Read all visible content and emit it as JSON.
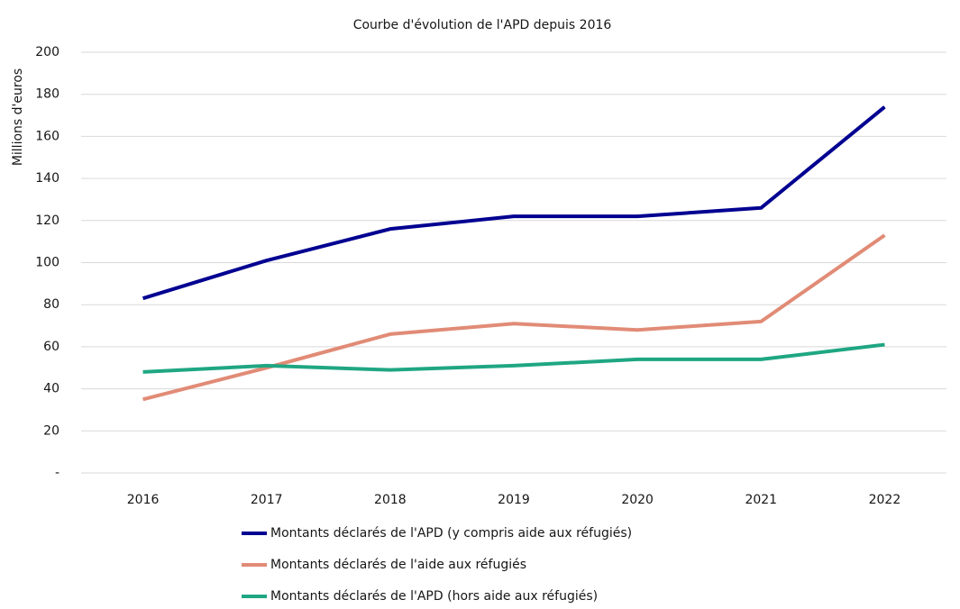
{
  "chart_data": {
    "type": "line",
    "title": "Courbe d'évolution de l'APD depuis 2016",
    "y_label": "Millions d'euros",
    "categories": [
      "2016",
      "2017",
      "2018",
      "2019",
      "2020",
      "2021",
      "2022"
    ],
    "series": [
      {
        "name": "Montants déclarés de l'APD (y compris aide aux réfugiés)",
        "color": "#000091",
        "values": [
          83,
          101,
          116,
          122,
          122,
          126,
          174
        ]
      },
      {
        "name": "Montants déclarés de l'aide aux réfugiés",
        "color": "#e18b76",
        "values": [
          35,
          50,
          66,
          71,
          68,
          72,
          113
        ]
      },
      {
        "name": "Montants déclarés de l'APD (hors aide aux réfugiés)",
        "color": "#1fa683",
        "values": [
          48,
          51,
          49,
          51,
          54,
          54,
          61
        ]
      }
    ],
    "ylim": [
      0,
      200
    ],
    "yticks": [
      {
        "value": 0,
        "label": "-"
      },
      20,
      40,
      60,
      80,
      100,
      120,
      140,
      160,
      180,
      200
    ],
    "grid": true,
    "legend": "bottom"
  }
}
